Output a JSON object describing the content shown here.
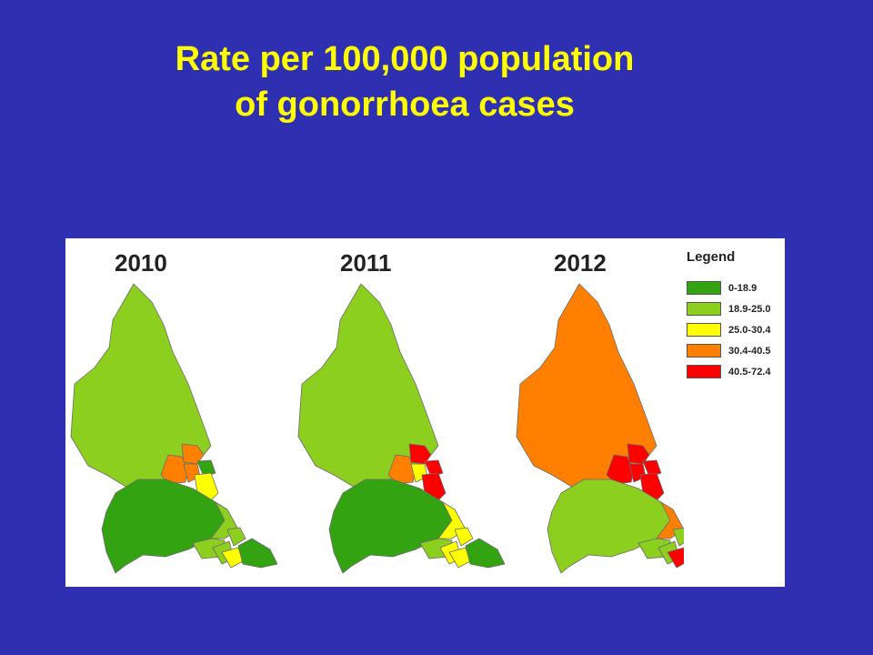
{
  "title": {
    "line1": "Rate per 100,000 population",
    "line2": "of gonorrhoea cases"
  },
  "maps": [
    {
      "year": "2010",
      "regions": {
        "northumberland": "18.9-25.0",
        "tyne_west": "30.4-40.5",
        "tyne_north": "30.4-40.5",
        "tyne_east": "30.4-40.5",
        "tyne_coast": "0-18.9",
        "sunderland": "25.0-30.4",
        "durham": "0-18.9",
        "durham_coast": "18.9-25.0",
        "darlington": "18.9-25.0",
        "stockton": "18.9-25.0",
        "middlesbrough": "25.0-30.4",
        "hartlepool": "18.9-25.0",
        "redcar": "0-18.9"
      }
    },
    {
      "year": "2011",
      "regions": {
        "northumberland": "18.9-25.0",
        "tyne_west": "30.4-40.5",
        "tyne_north": "40.5-72.4",
        "tyne_east": "25.0-30.4",
        "tyne_coast": "40.5-72.4",
        "sunderland": "40.5-72.4",
        "durham": "0-18.9",
        "durham_coast": "25.0-30.4",
        "darlington": "18.9-25.0",
        "stockton": "25.0-30.4",
        "middlesbrough": "25.0-30.4",
        "hartlepool": "25.0-30.4",
        "redcar": "0-18.9"
      }
    },
    {
      "year": "2012",
      "regions": {
        "northumberland": "30.4-40.5",
        "tyne_west": "40.5-72.4",
        "tyne_north": "40.5-72.4",
        "tyne_east": "40.5-72.4",
        "tyne_coast": "40.5-72.4",
        "sunderland": "40.5-72.4",
        "durham": "18.9-25.0",
        "durham_coast": "30.4-40.5",
        "darlington": "18.9-25.0",
        "stockton": "18.9-25.0",
        "middlesbrough": "40.5-72.4",
        "hartlepool": "18.9-25.0",
        "redcar": "18.9-25.0"
      }
    }
  ],
  "legend": {
    "title": "Legend",
    "items": [
      {
        "label": "0-18.9",
        "color": "#33a312"
      },
      {
        "label": "18.9-25.0",
        "color": "#8ccf1f"
      },
      {
        "label": "25.0-30.4",
        "color": "#ffff00"
      },
      {
        "label": "30.4-40.5",
        "color": "#ff8000"
      },
      {
        "label": "40.5-72.4",
        "color": "#ff0000"
      }
    ]
  },
  "colors": {
    "background": "#2f2fb2",
    "title": "#ffff00",
    "panel": "#ffffff"
  }
}
